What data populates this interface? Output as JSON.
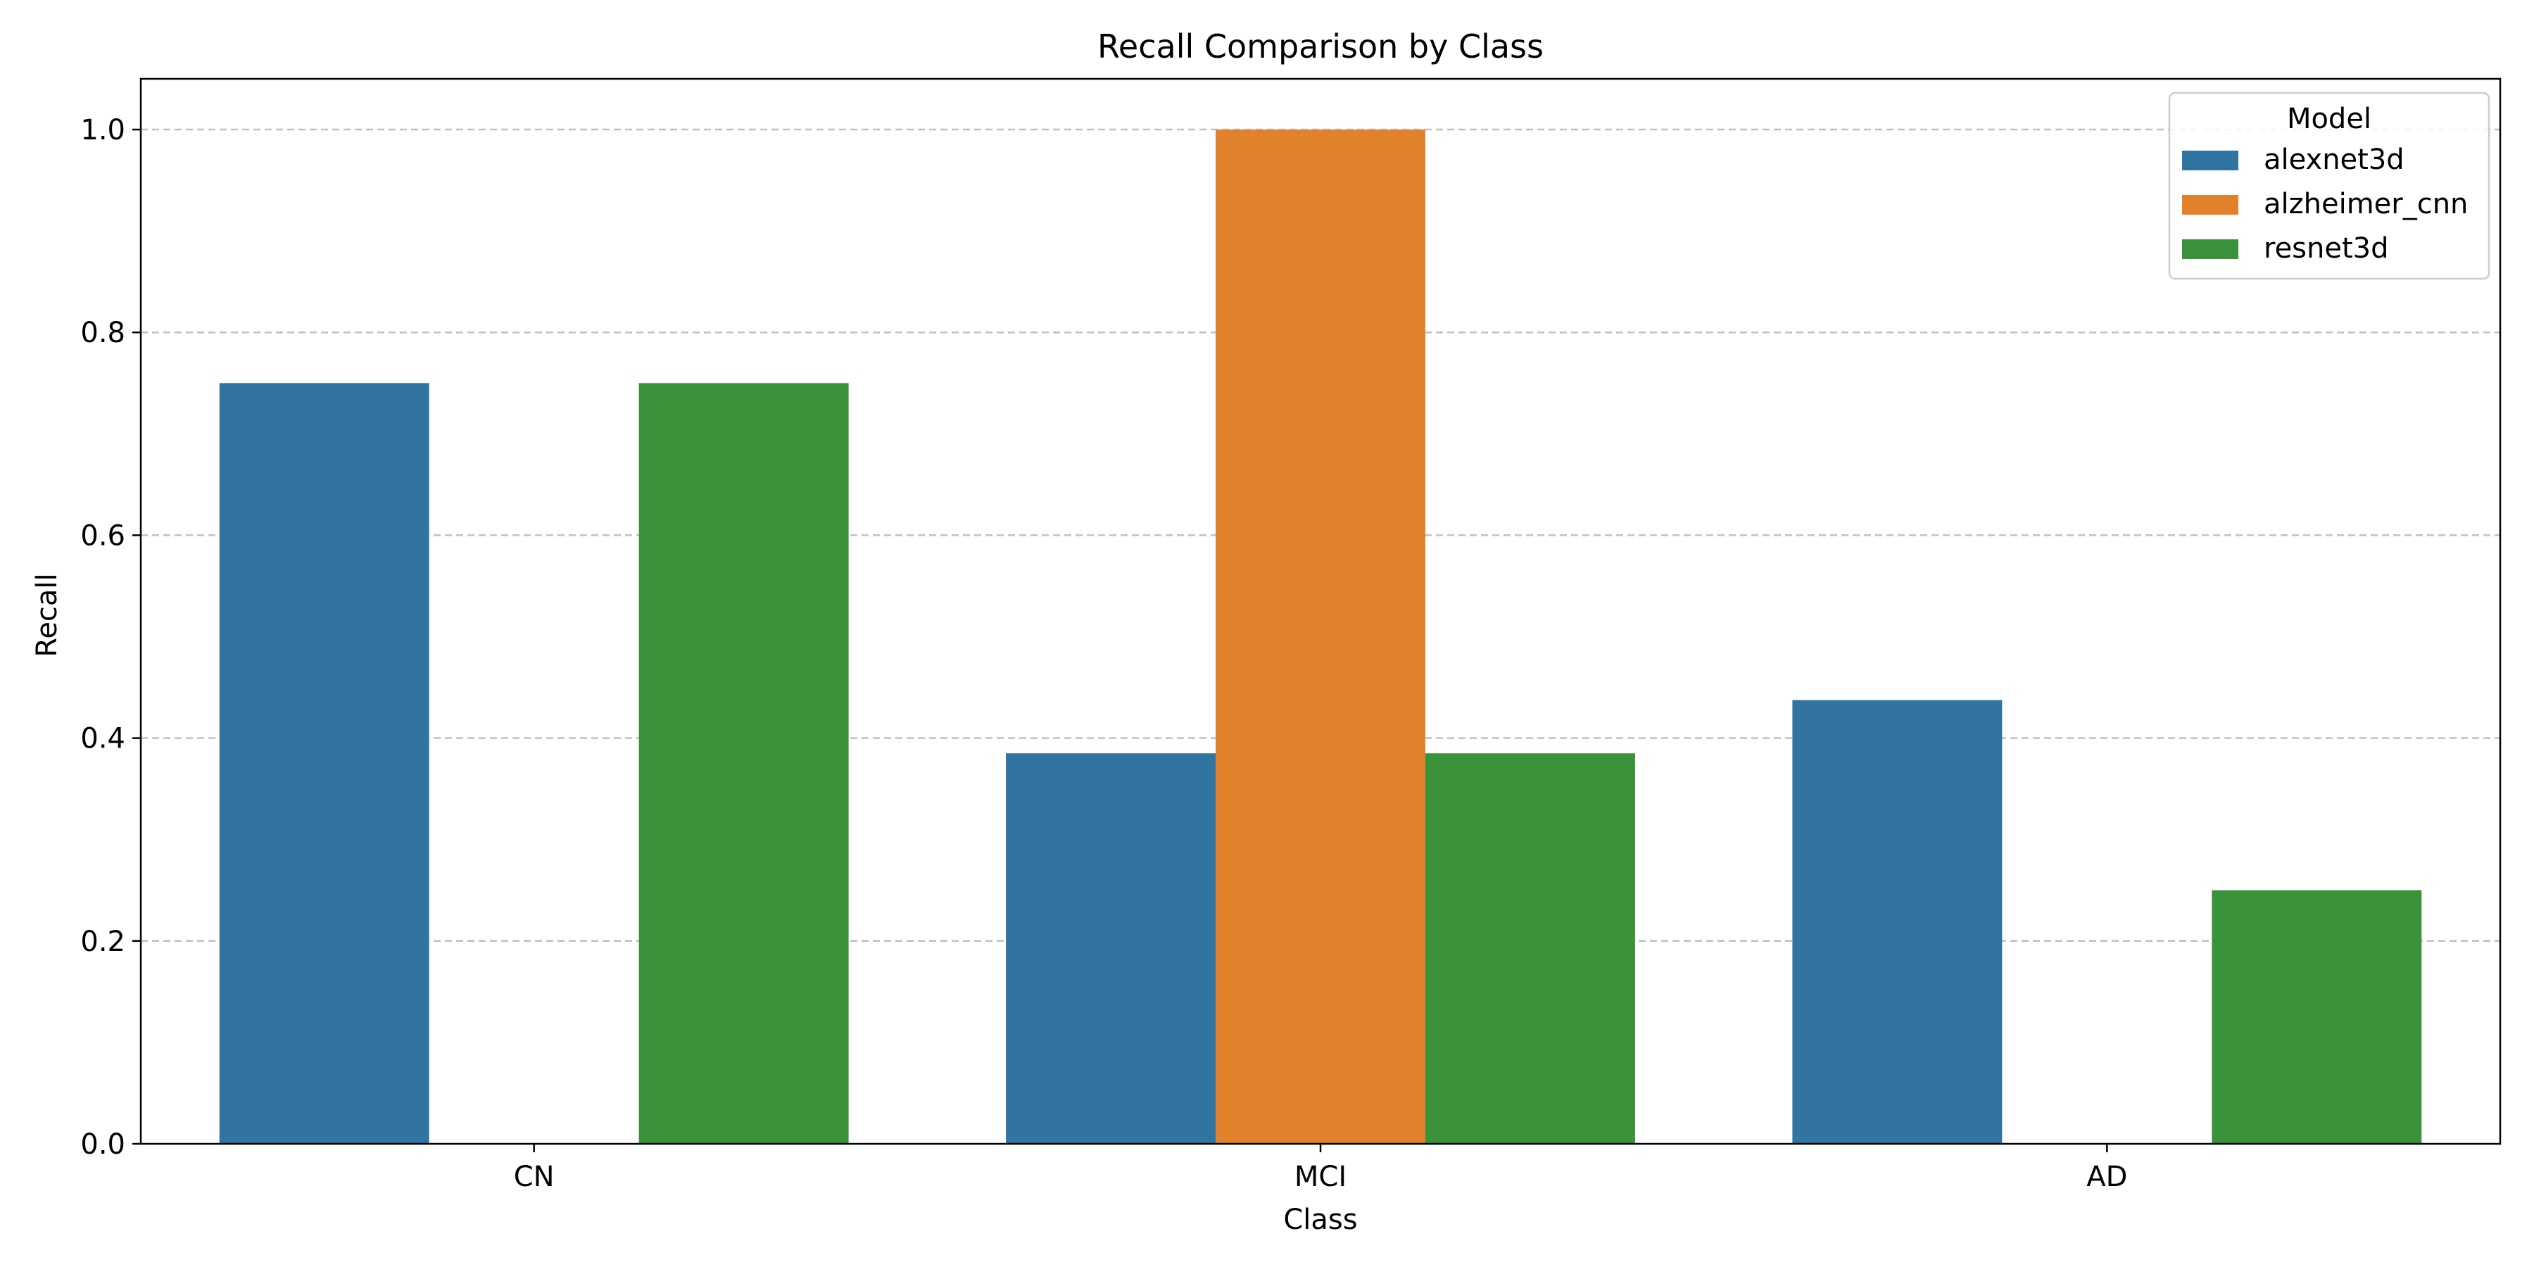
{
  "colors": {
    "alexnet3d": "#3274a1",
    "alzheimer_cnn": "#e1812c",
    "resnet3d": "#3a923a",
    "grid": "#c0c0c0",
    "axis": "#000000"
  },
  "chart_data": {
    "type": "bar",
    "title": "Recall Comparison by Class",
    "xlabel": "Class",
    "ylabel": "Recall",
    "categories": [
      "CN",
      "MCI",
      "AD"
    ],
    "series": [
      {
        "name": "alexnet3d",
        "values": [
          0.75,
          0.385,
          0.4375
        ]
      },
      {
        "name": "alzheimer_cnn",
        "values": [
          0.0,
          1.0,
          0.0
        ]
      },
      {
        "name": "resnet3d",
        "values": [
          0.75,
          0.385,
          0.25
        ]
      }
    ],
    "ylim": [
      0,
      1.05
    ],
    "yticks": [
      "0.0",
      "0.2",
      "0.4",
      "0.6",
      "0.8",
      "1.0"
    ],
    "grid": "y-dashed",
    "legend": {
      "title": "Model",
      "position": "top-right"
    }
  }
}
